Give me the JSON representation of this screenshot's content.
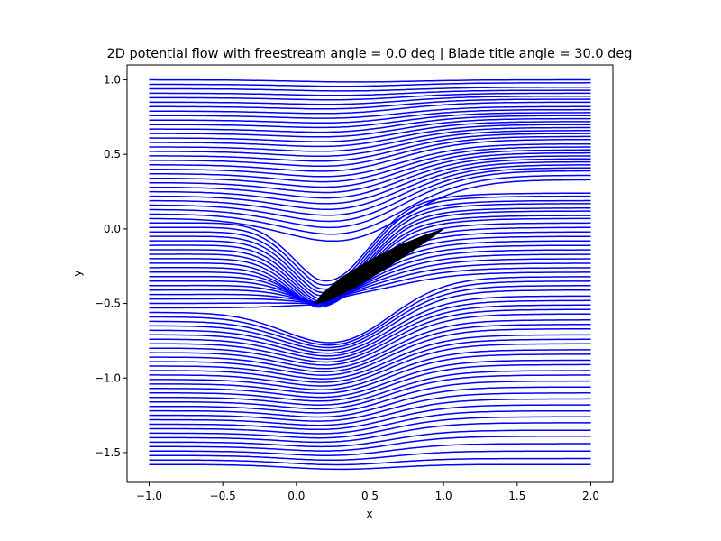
{
  "chart_data": {
    "type": "line",
    "title": "2D potential flow with freestream angle = 0.0 deg | Blade title angle = 30.0 deg",
    "xlabel": "x",
    "ylabel": "y",
    "xlim": [
      -1.15,
      2.15
    ],
    "ylim": [
      -1.7,
      1.1
    ],
    "xticks": [
      -1.0,
      -0.5,
      0.0,
      0.5,
      1.0,
      1.5,
      2.0
    ],
    "xtick_labels": [
      "−1.0",
      "−0.5",
      "0.0",
      "0.5",
      "1.0",
      "1.5",
      "2.0"
    ],
    "yticks": [
      1.0,
      0.5,
      0.0,
      -0.5,
      -1.0,
      -1.5
    ],
    "ytick_labels": [
      "1.0",
      "0.5",
      "0.0",
      "−0.5",
      "−1.0",
      "−1.5"
    ],
    "grid": false,
    "freestream_angle_deg": 0.0,
    "blade_tilt_angle_deg": 30.0,
    "streamline_color": "#0000ff",
    "blade_color": "#000000",
    "blade": {
      "leading_edge": [
        0.13,
        -0.5
      ],
      "trailing_edge": [
        1.0,
        0.0
      ],
      "upper_surface": [
        [
          0.13,
          -0.5
        ],
        [
          0.17,
          -0.44
        ],
        [
          0.3,
          -0.33
        ],
        [
          0.5,
          -0.21
        ],
        [
          0.7,
          -0.11
        ],
        [
          0.88,
          -0.04
        ],
        [
          1.0,
          0.0
        ]
      ],
      "lower_surface": [
        [
          0.13,
          -0.5
        ],
        [
          0.22,
          -0.48
        ],
        [
          0.4,
          -0.39
        ],
        [
          0.6,
          -0.27
        ],
        [
          0.8,
          -0.14
        ],
        [
          0.93,
          -0.05
        ],
        [
          1.0,
          0.0
        ]
      ]
    },
    "streamline_upstream_y": [
      1.0,
      0.97,
      0.94,
      0.91,
      0.88,
      0.85,
      0.82,
      0.79,
      0.76,
      0.73,
      0.7,
      0.67,
      0.64,
      0.61,
      0.58,
      0.55,
      0.52,
      0.49,
      0.46,
      0.43,
      0.4,
      0.37,
      0.34,
      0.31,
      0.28,
      0.25,
      0.22,
      0.19,
      0.16,
      0.13,
      0.1,
      0.07,
      0.04,
      0.01,
      -0.02,
      -0.05,
      -0.08,
      -0.11,
      -0.14,
      -0.17,
      -0.2,
      -0.23,
      -0.26,
      -0.29,
      -0.32,
      -0.35,
      -0.38,
      -0.41,
      -0.44,
      -0.47,
      -0.5,
      -0.53,
      -0.56,
      -0.59,
      -0.62,
      -0.65,
      -0.68,
      -0.71,
      -0.74,
      -0.77,
      -0.8,
      -0.83,
      -0.86,
      -0.89,
      -0.92,
      -0.95,
      -0.98,
      -1.01,
      -1.04,
      -1.07,
      -1.1,
      -1.13,
      -1.16,
      -1.19,
      -1.22,
      -1.25,
      -1.28,
      -1.31,
      -1.34,
      -1.37,
      -1.4,
      -1.43,
      -1.46,
      -1.49,
      -1.52,
      -1.55,
      -1.58
    ],
    "streamline_downstream_y": [
      1.0,
      0.98,
      0.95,
      0.93,
      0.91,
      0.89,
      0.87,
      0.85,
      0.82,
      0.8,
      0.78,
      0.76,
      0.74,
      0.72,
      0.7,
      0.68,
      0.66,
      0.64,
      0.62,
      0.6,
      0.57,
      0.55,
      0.53,
      0.51,
      0.49,
      0.47,
      0.45,
      0.43,
      0.41,
      0.39,
      0.36,
      0.33,
      0.24,
      0.22,
      0.19,
      0.17,
      0.14,
      0.12,
      0.09,
      0.07,
      0.04,
      0.01,
      -0.02,
      -0.05,
      -0.08,
      -0.11,
      -0.14,
      -0.17,
      -0.2,
      -0.23,
      -0.26,
      -0.29,
      -0.32,
      -0.35,
      -0.38,
      -0.41,
      -0.45,
      -0.48,
      -0.51,
      -0.54,
      -0.57,
      -0.61,
      -0.64,
      -0.67,
      -0.71,
      -0.74,
      -0.77,
      -0.81,
      -0.84,
      -0.88,
      -0.91,
      -0.95,
      -0.98,
      -1.02,
      -1.06,
      -1.1,
      -1.14,
      -1.18,
      -1.22,
      -1.26,
      -1.3,
      -1.35,
      -1.39,
      -1.44,
      -1.49,
      -1.54,
      -1.58
    ]
  }
}
